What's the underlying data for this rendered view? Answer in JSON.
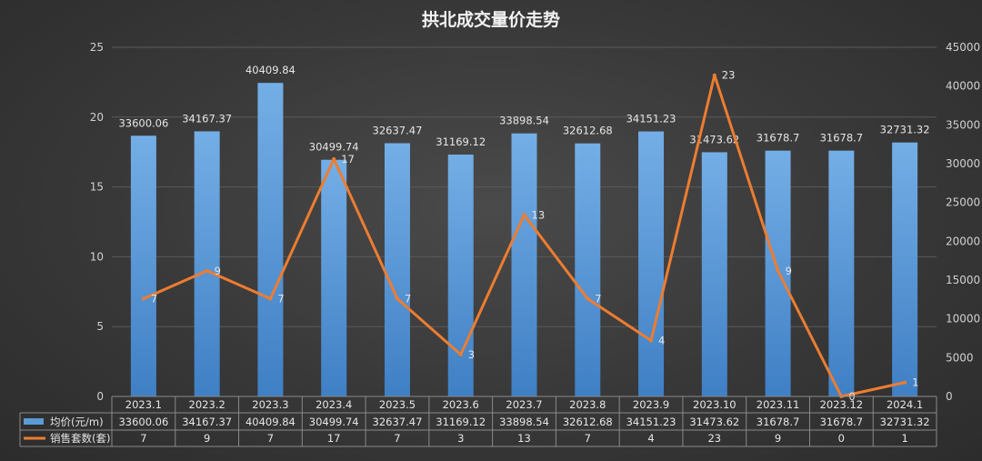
{
  "chart_data": {
    "type": "bar",
    "title": "拱北成交量价走势",
    "categories": [
      "2023.1",
      "2023.2",
      "2023.3",
      "2023.4",
      "2023.5",
      "2023.6",
      "2023.7",
      "2023.8",
      "2023.9",
      "2023.10",
      "2023.11",
      "2023.12",
      "2024.1"
    ],
    "series": [
      {
        "name": "均价(元/m)",
        "type": "bar",
        "axis": "right",
        "color": "#5b9bd5",
        "values": [
          33600.06,
          34167.37,
          40409.84,
          30499.74,
          32637.47,
          31169.12,
          33898.54,
          32612.68,
          34151.23,
          31473.62,
          31678.7,
          31678.7,
          32731.32
        ],
        "labels": [
          "33600.06",
          "34167.37",
          "40409.84",
          "30499.74",
          "32637.47",
          "31169.12",
          "33898.54",
          "32612.68",
          "34151.23",
          "31473.62",
          "31678.7",
          "31678.7",
          "32731.32"
        ]
      },
      {
        "name": "销售套数(套)",
        "type": "line",
        "axis": "left",
        "color": "#ed7d31",
        "values": [
          7,
          9,
          7,
          17,
          7,
          3,
          13,
          7,
          4,
          23,
          9,
          0,
          1
        ],
        "labels": [
          "7",
          "9",
          "7",
          "17",
          "7",
          "3",
          "13",
          "7",
          "4",
          "23",
          "9",
          "0",
          "1"
        ]
      }
    ],
    "y_left": {
      "range": [
        0,
        25
      ],
      "ticks": [
        "0",
        "5",
        "10",
        "15",
        "20",
        "25"
      ]
    },
    "y_right": {
      "range": [
        0,
        45000
      ],
      "ticks": [
        "0",
        "5000",
        "10000",
        "15000",
        "20000",
        "25000",
        "30000",
        "35000",
        "40000",
        "45000"
      ]
    },
    "grid": true,
    "legend": "data-table"
  }
}
